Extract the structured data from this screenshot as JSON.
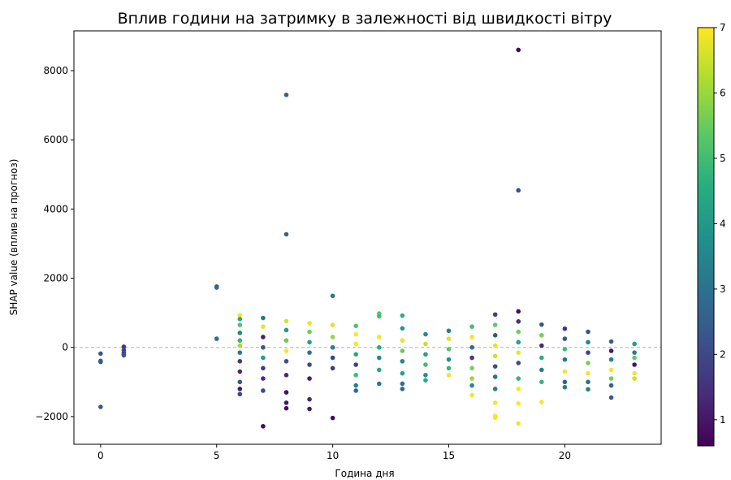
{
  "chart_data": {
    "type": "scatter",
    "title": "Вплив години на затримку в залежності від швидкості вітру",
    "xlabel": "Година дня",
    "ylabel": "SHAP value (вплив на прогноз)",
    "xlim": [
      -1.15,
      24.15
    ],
    "ylim": [
      -2800,
      9150
    ],
    "x_ticks": [
      0,
      5,
      10,
      15,
      20
    ],
    "x_tick_labels": [
      "0",
      "5",
      "10",
      "15",
      "20"
    ],
    "y_ticks": [
      -2000,
      0,
      2000,
      4000,
      6000,
      8000
    ],
    "y_tick_labels": [
      "−2000",
      "0",
      "2000",
      "4000",
      "6000",
      "8000"
    ],
    "reference_line": {
      "y": 0,
      "style": "dashed",
      "color": "#b0b0b0"
    },
    "grid": false,
    "colormap": "viridis",
    "colorbar": {
      "label": "",
      "range": [
        0.6,
        7.0
      ],
      "ticks": [
        1,
        2,
        3,
        4,
        5,
        6,
        7
      ],
      "tick_labels": [
        "1",
        "2",
        "3",
        "4",
        "5",
        "6",
        "7"
      ]
    },
    "points": [
      {
        "x": 0,
        "y": -180,
        "c": 2.3
      },
      {
        "x": 0,
        "y": -390,
        "c": 2.2
      },
      {
        "x": 0,
        "y": -420,
        "c": 2.5
      },
      {
        "x": 0,
        "y": -1720,
        "c": 2.4
      },
      {
        "x": 1,
        "y": 20,
        "c": 1.6
      },
      {
        "x": 1,
        "y": -80,
        "c": 1.9
      },
      {
        "x": 1,
        "y": -150,
        "c": 2.2
      },
      {
        "x": 1,
        "y": -200,
        "c": 1.5
      },
      {
        "x": 1,
        "y": -230,
        "c": 2.4
      },
      {
        "x": 5,
        "y": 1760,
        "c": 2.6
      },
      {
        "x": 5,
        "y": 1730,
        "c": 2.7
      },
      {
        "x": 5,
        "y": 250,
        "c": 2.8
      },
      {
        "x": 6,
        "y": 930,
        "c": 6.9
      },
      {
        "x": 6,
        "y": 820,
        "c": 4.4
      },
      {
        "x": 6,
        "y": 650,
        "c": 5.2
      },
      {
        "x": 6,
        "y": 420,
        "c": 3.4
      },
      {
        "x": 6,
        "y": 200,
        "c": 4.8
      },
      {
        "x": 6,
        "y": 50,
        "c": 6.1
      },
      {
        "x": 6,
        "y": -150,
        "c": 3.0
      },
      {
        "x": 6,
        "y": -400,
        "c": 1.6
      },
      {
        "x": 6,
        "y": -700,
        "c": 1.3
      },
      {
        "x": 6,
        "y": -1000,
        "c": 2.2
      },
      {
        "x": 6,
        "y": -1200,
        "c": 1.1
      },
      {
        "x": 6,
        "y": -1350,
        "c": 1.9
      },
      {
        "x": 7,
        "y": 850,
        "c": 3.1
      },
      {
        "x": 7,
        "y": 600,
        "c": 6.8
      },
      {
        "x": 7,
        "y": 300,
        "c": 1.2
      },
      {
        "x": 7,
        "y": 0,
        "c": 2.4
      },
      {
        "x": 7,
        "y": -300,
        "c": 4.1
      },
      {
        "x": 7,
        "y": -600,
        "c": 1.7
      },
      {
        "x": 7,
        "y": -900,
        "c": 1.4
      },
      {
        "x": 7,
        "y": -1250,
        "c": 2.0
      },
      {
        "x": 7,
        "y": -2280,
        "c": 0.8
      },
      {
        "x": 8,
        "y": 7300,
        "c": 2.5
      },
      {
        "x": 8,
        "y": 3270,
        "c": 2.6
      },
      {
        "x": 8,
        "y": 760,
        "c": 6.6
      },
      {
        "x": 8,
        "y": 500,
        "c": 4.0
      },
      {
        "x": 8,
        "y": 200,
        "c": 5.5
      },
      {
        "x": 8,
        "y": -100,
        "c": 6.9
      },
      {
        "x": 8,
        "y": -400,
        "c": 2.2
      },
      {
        "x": 8,
        "y": -800,
        "c": 1.3
      },
      {
        "x": 8,
        "y": -1300,
        "c": 0.9
      },
      {
        "x": 8,
        "y": -1600,
        "c": 1.0
      },
      {
        "x": 8,
        "y": -1760,
        "c": 0.8
      },
      {
        "x": 9,
        "y": 700,
        "c": 6.8
      },
      {
        "x": 9,
        "y": 450,
        "c": 5.6
      },
      {
        "x": 9,
        "y": 150,
        "c": 4.2
      },
      {
        "x": 9,
        "y": -150,
        "c": 3.0
      },
      {
        "x": 9,
        "y": -500,
        "c": 2.0
      },
      {
        "x": 9,
        "y": -900,
        "c": 1.1
      },
      {
        "x": 9,
        "y": -1500,
        "c": 1.3
      },
      {
        "x": 9,
        "y": -1780,
        "c": 1.0
      },
      {
        "x": 10,
        "y": 1490,
        "c": 3.1
      },
      {
        "x": 10,
        "y": 650,
        "c": 6.7
      },
      {
        "x": 10,
        "y": 300,
        "c": 6.0
      },
      {
        "x": 10,
        "y": 0,
        "c": 3.3
      },
      {
        "x": 10,
        "y": -300,
        "c": 1.9
      },
      {
        "x": 10,
        "y": -600,
        "c": 1.6
      },
      {
        "x": 10,
        "y": -2040,
        "c": 0.8
      },
      {
        "x": 11,
        "y": 620,
        "c": 5.2
      },
      {
        "x": 11,
        "y": 380,
        "c": 7.0
      },
      {
        "x": 11,
        "y": 100,
        "c": 6.9
      },
      {
        "x": 11,
        "y": -200,
        "c": 4.5
      },
      {
        "x": 11,
        "y": -500,
        "c": 1.8
      },
      {
        "x": 11,
        "y": -800,
        "c": 5.0
      },
      {
        "x": 11,
        "y": -1100,
        "c": 3.4
      },
      {
        "x": 11,
        "y": -1250,
        "c": 2.9
      },
      {
        "x": 12,
        "y": 980,
        "c": 5.3
      },
      {
        "x": 12,
        "y": 900,
        "c": 5.0
      },
      {
        "x": 12,
        "y": 300,
        "c": 6.9
      },
      {
        "x": 12,
        "y": 0,
        "c": 4.6
      },
      {
        "x": 12,
        "y": -300,
        "c": 3.6
      },
      {
        "x": 12,
        "y": -650,
        "c": 4.4
      },
      {
        "x": 12,
        "y": -1050,
        "c": 3.1
      },
      {
        "x": 13,
        "y": 920,
        "c": 4.6
      },
      {
        "x": 13,
        "y": 550,
        "c": 4.0
      },
      {
        "x": 13,
        "y": 200,
        "c": 6.8
      },
      {
        "x": 13,
        "y": -100,
        "c": 5.5
      },
      {
        "x": 13,
        "y": -400,
        "c": 3.5
      },
      {
        "x": 13,
        "y": -750,
        "c": 4.3
      },
      {
        "x": 13,
        "y": -1050,
        "c": 3.0
      },
      {
        "x": 13,
        "y": -1200,
        "c": 2.8
      },
      {
        "x": 14,
        "y": 380,
        "c": 3.6
      },
      {
        "x": 14,
        "y": 100,
        "c": 6.5
      },
      {
        "x": 14,
        "y": -200,
        "c": 4.2
      },
      {
        "x": 14,
        "y": -500,
        "c": 5.0
      },
      {
        "x": 14,
        "y": -800,
        "c": 3.8
      },
      {
        "x": 14,
        "y": -950,
        "c": 4.6
      },
      {
        "x": 15,
        "y": 480,
        "c": 3.2
      },
      {
        "x": 15,
        "y": 250,
        "c": 6.7
      },
      {
        "x": 15,
        "y": -50,
        "c": 5.3
      },
      {
        "x": 15,
        "y": -350,
        "c": 3.9
      },
      {
        "x": 15,
        "y": -600,
        "c": 4.8
      },
      {
        "x": 15,
        "y": -800,
        "c": 6.9
      },
      {
        "x": 16,
        "y": 600,
        "c": 5.0
      },
      {
        "x": 16,
        "y": 300,
        "c": 6.9
      },
      {
        "x": 16,
        "y": 0,
        "c": 2.8
      },
      {
        "x": 16,
        "y": -300,
        "c": 1.6
      },
      {
        "x": 16,
        "y": -600,
        "c": 5.7
      },
      {
        "x": 16,
        "y": -900,
        "c": 6.0
      },
      {
        "x": 16,
        "y": -1100,
        "c": 3.6
      },
      {
        "x": 16,
        "y": -1380,
        "c": 6.9
      },
      {
        "x": 17,
        "y": 950,
        "c": 1.8
      },
      {
        "x": 17,
        "y": 650,
        "c": 5.4
      },
      {
        "x": 17,
        "y": 350,
        "c": 2.3
      },
      {
        "x": 17,
        "y": 50,
        "c": 6.8
      },
      {
        "x": 17,
        "y": -250,
        "c": 6.5
      },
      {
        "x": 17,
        "y": -550,
        "c": 2.1
      },
      {
        "x": 17,
        "y": -850,
        "c": 3.0
      },
      {
        "x": 17,
        "y": -1200,
        "c": 3.3
      },
      {
        "x": 17,
        "y": -1600,
        "c": 6.9
      },
      {
        "x": 17,
        "y": -1980,
        "c": 7.0
      },
      {
        "x": 17,
        "y": -2030,
        "c": 6.9
      },
      {
        "x": 18,
        "y": 8600,
        "c": 0.7
      },
      {
        "x": 18,
        "y": 4540,
        "c": 2.1
      },
      {
        "x": 18,
        "y": 1040,
        "c": 0.8
      },
      {
        "x": 18,
        "y": 750,
        "c": 1.5
      },
      {
        "x": 18,
        "y": 450,
        "c": 5.6
      },
      {
        "x": 18,
        "y": 150,
        "c": 4.2
      },
      {
        "x": 18,
        "y": -150,
        "c": 6.8
      },
      {
        "x": 18,
        "y": -450,
        "c": 2.0
      },
      {
        "x": 18,
        "y": -900,
        "c": 4.8
      },
      {
        "x": 18,
        "y": -1200,
        "c": 6.9
      },
      {
        "x": 18,
        "y": -1620,
        "c": 7.0
      },
      {
        "x": 18,
        "y": -2200,
        "c": 6.9
      },
      {
        "x": 19,
        "y": 660,
        "c": 2.3
      },
      {
        "x": 19,
        "y": 350,
        "c": 5.6
      },
      {
        "x": 19,
        "y": 50,
        "c": 1.3
      },
      {
        "x": 19,
        "y": -300,
        "c": 4.6
      },
      {
        "x": 19,
        "y": -650,
        "c": 3.2
      },
      {
        "x": 19,
        "y": -1000,
        "c": 4.8
      },
      {
        "x": 19,
        "y": -1580,
        "c": 6.9
      },
      {
        "x": 20,
        "y": 540,
        "c": 1.6
      },
      {
        "x": 20,
        "y": 250,
        "c": 2.4
      },
      {
        "x": 20,
        "y": -50,
        "c": 5.0
      },
      {
        "x": 20,
        "y": -350,
        "c": 3.1
      },
      {
        "x": 20,
        "y": -700,
        "c": 6.9
      },
      {
        "x": 20,
        "y": -1000,
        "c": 2.6
      },
      {
        "x": 20,
        "y": -1150,
        "c": 3.3
      },
      {
        "x": 21,
        "y": 450,
        "c": 2.2
      },
      {
        "x": 21,
        "y": 150,
        "c": 3.5
      },
      {
        "x": 21,
        "y": -150,
        "c": 1.8
      },
      {
        "x": 21,
        "y": -450,
        "c": 5.6
      },
      {
        "x": 21,
        "y": -750,
        "c": 6.9
      },
      {
        "x": 21,
        "y": -1000,
        "c": 2.9
      },
      {
        "x": 21,
        "y": -1210,
        "c": 3.3
      },
      {
        "x": 22,
        "y": 170,
        "c": 2.5
      },
      {
        "x": 22,
        "y": -100,
        "c": 1.0
      },
      {
        "x": 22,
        "y": -350,
        "c": 3.4
      },
      {
        "x": 22,
        "y": -650,
        "c": 6.9
      },
      {
        "x": 22,
        "y": -900,
        "c": 5.6
      },
      {
        "x": 22,
        "y": -1100,
        "c": 2.7
      },
      {
        "x": 22,
        "y": -1450,
        "c": 2.4
      },
      {
        "x": 23,
        "y": 100,
        "c": 4.2
      },
      {
        "x": 23,
        "y": -150,
        "c": 3.3
      },
      {
        "x": 23,
        "y": -300,
        "c": 5.4
      },
      {
        "x": 23,
        "y": -500,
        "c": 1.0
      },
      {
        "x": 23,
        "y": -750,
        "c": 6.9
      },
      {
        "x": 23,
        "y": -900,
        "c": 6.5
      }
    ]
  }
}
